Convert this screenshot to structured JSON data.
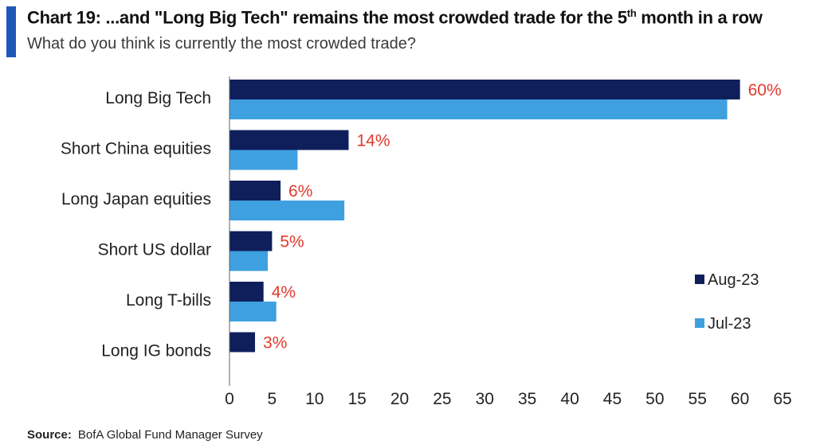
{
  "header": {
    "title_main": "Chart 19: ...and \"Long Big Tech\" remains the most crowded trade for the 5",
    "title_sup": "th",
    "title_end": " month in a row",
    "subtitle": "What do you think is currently the most crowded trade?"
  },
  "source": {
    "label": "Source:",
    "text": "BofA Global Fund Manager Survey"
  },
  "colors": {
    "accent": "#1f57b8",
    "aug": "#0f1f5c",
    "jul": "#3fa0e0",
    "label_red": "#e03a2e"
  },
  "chart_data": {
    "type": "bar",
    "orientation": "horizontal",
    "categories": [
      "Long Big Tech",
      "Short China equities",
      "Long Japan equities",
      "Short US dollar",
      "Long T-bills",
      "Long IG bonds"
    ],
    "series": [
      {
        "name": "Aug-23",
        "values": [
          60,
          14,
          6,
          5,
          4,
          3
        ]
      },
      {
        "name": "Jul-23",
        "values": [
          58.5,
          8,
          13.5,
          4.5,
          5.5,
          null
        ]
      }
    ],
    "data_labels": [
      "60%",
      "14%",
      "6%",
      "5%",
      "4%",
      "3%"
    ],
    "xlim": [
      0,
      65
    ],
    "xticks": [
      0,
      5,
      10,
      15,
      20,
      25,
      30,
      35,
      40,
      45,
      50,
      55,
      60,
      65
    ],
    "grid": false,
    "legend": {
      "placement": "right",
      "entries": [
        "Aug-23",
        "Jul-23"
      ]
    }
  }
}
